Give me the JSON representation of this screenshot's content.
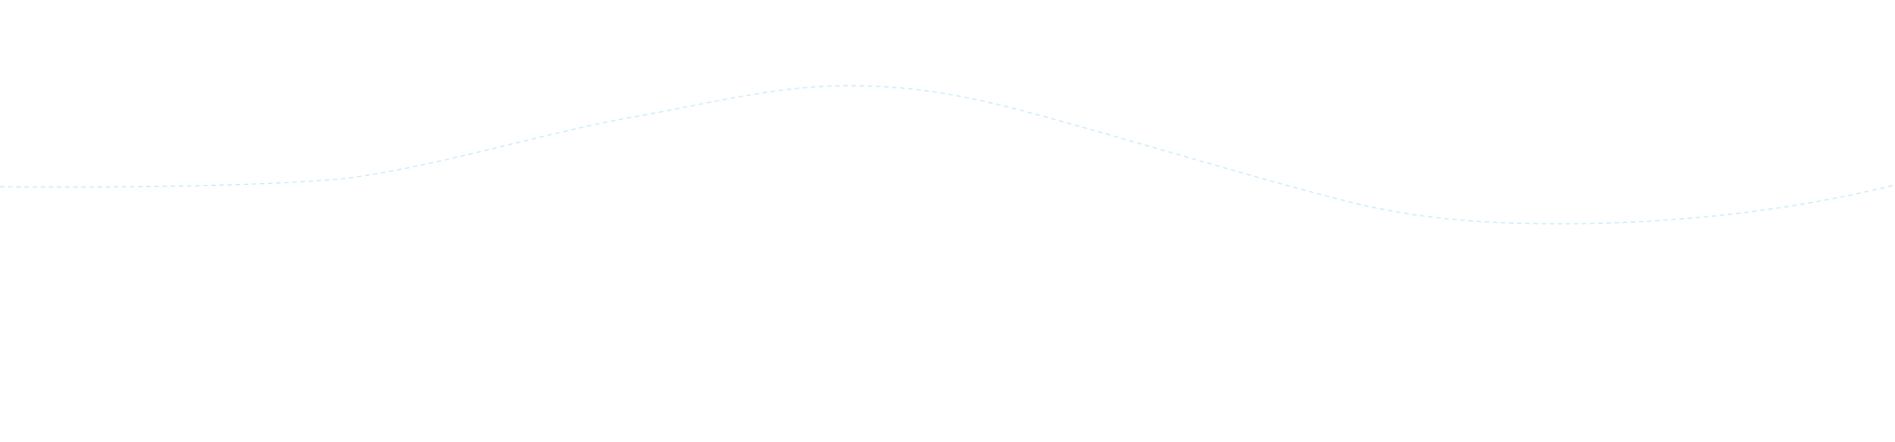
{
  "wave": {
    "stroke_color": "#c6ebfa",
    "background_color": "#ffffff",
    "style": "dashed"
  }
}
